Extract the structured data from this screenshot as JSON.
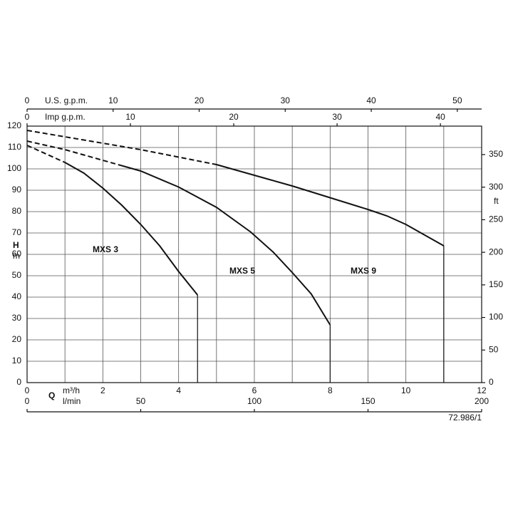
{
  "chart_data": {
    "type": "line",
    "y_label_symbol": "H",
    "y_label_unit": "m",
    "y2_label": "ft",
    "x_label_symbol": "Q",
    "x_label_unit": "m³/h",
    "lmin_label": "l/min",
    "us_gpm_label": "U.S. g.p.m.",
    "imp_gpm_label": "Imp g.p.m.",
    "reference": "72.986/1",
    "xlim": [
      0,
      12
    ],
    "xticks": [
      0,
      2,
      4,
      6,
      8,
      10,
      12
    ],
    "x_minor_ticks": [
      1,
      3,
      5,
      7,
      9,
      11
    ],
    "ylim": [
      0,
      120
    ],
    "yticks": [
      0,
      10,
      20,
      30,
      40,
      50,
      60,
      70,
      80,
      90,
      100,
      110,
      120
    ],
    "y2lim": [
      0,
      393.7
    ],
    "y2ticks": [
      0,
      50,
      100,
      150,
      200,
      250,
      300,
      350
    ],
    "us_gpm_lim": [
      0,
      52.83
    ],
    "us_gpm_ticks": [
      0,
      10,
      20,
      30,
      40,
      50
    ],
    "imp_gpm_lim": [
      0,
      43.99
    ],
    "imp_gpm_ticks": [
      0,
      10,
      20,
      30,
      40
    ],
    "lmin_lim": [
      0,
      200
    ],
    "lmin_ticks": [
      0,
      50,
      100,
      150,
      200
    ],
    "grid": true,
    "series": [
      {
        "name": "MXS 3",
        "color": "#111111",
        "dashed_to_x": 1,
        "x": [
          0,
          1,
          1.5,
          2,
          2.5,
          3,
          3.5,
          4,
          4.5
        ],
        "values": [
          111,
          103,
          98,
          91,
          83,
          74,
          64,
          52,
          41
        ]
      },
      {
        "name": "MXS 5",
        "color": "#111111",
        "dashed_to_x": 2.5,
        "x": [
          0,
          1,
          2,
          2.5,
          3,
          4,
          5,
          5.9,
          6.5,
          7,
          7.5,
          8
        ],
        "values": [
          113,
          109,
          104,
          101.5,
          99,
          91.5,
          82,
          70.5,
          61,
          51.5,
          41.5,
          27
        ]
      },
      {
        "name": "MXS 9",
        "color": "#111111",
        "dashed_to_x": 5,
        "x": [
          0,
          1,
          2,
          3,
          4,
          5,
          6,
          7,
          8,
          9,
          9.5,
          10,
          10.5,
          11
        ],
        "values": [
          118,
          115,
          112,
          109,
          105.5,
          102,
          97,
          92,
          86.5,
          81,
          78,
          74,
          69,
          64
        ]
      }
    ]
  }
}
